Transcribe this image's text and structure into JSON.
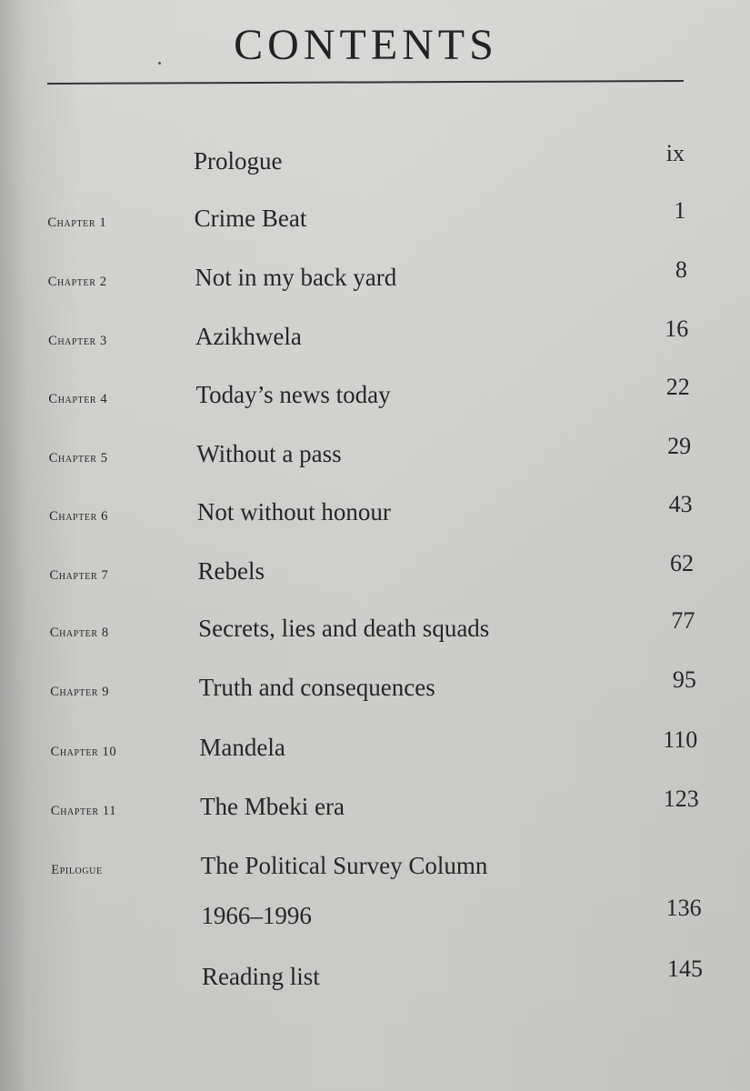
{
  "heading": "CONTENTS",
  "entries": [
    {
      "label": "",
      "title": "Prologue",
      "page": "ix"
    },
    {
      "label": "Chapter 1",
      "title": "Crime Beat",
      "page": "1"
    },
    {
      "label": "Chapter 2",
      "title": "Not in my back yard",
      "page": "8"
    },
    {
      "label": "Chapter 3",
      "title": "Azikhwela",
      "page": "16"
    },
    {
      "label": "Chapter 4",
      "title": "Today’s news today",
      "page": "22"
    },
    {
      "label": "Chapter 5",
      "title": "Without a pass",
      "page": "29"
    },
    {
      "label": "Chapter 6",
      "title": "Not without honour",
      "page": "43"
    },
    {
      "label": "Chapter 7",
      "title": "Rebels",
      "page": "62"
    },
    {
      "label": "Chapter 8",
      "title": "Secrets, lies and death squads",
      "page": "77"
    },
    {
      "label": "Chapter 9",
      "title": "Truth and consequences",
      "page": "95"
    },
    {
      "label": "Chapter 10",
      "title": "Mandela",
      "page": "110"
    },
    {
      "label": "Chapter 11",
      "title": "The Mbeki era",
      "page": "123"
    },
    {
      "label": "Epilogue",
      "title": "The Political Survey Column",
      "page": ""
    },
    {
      "label": "",
      "title": "1966–1996",
      "page": "136"
    },
    {
      "label": "",
      "title": "Reading list",
      "page": "145"
    }
  ]
}
